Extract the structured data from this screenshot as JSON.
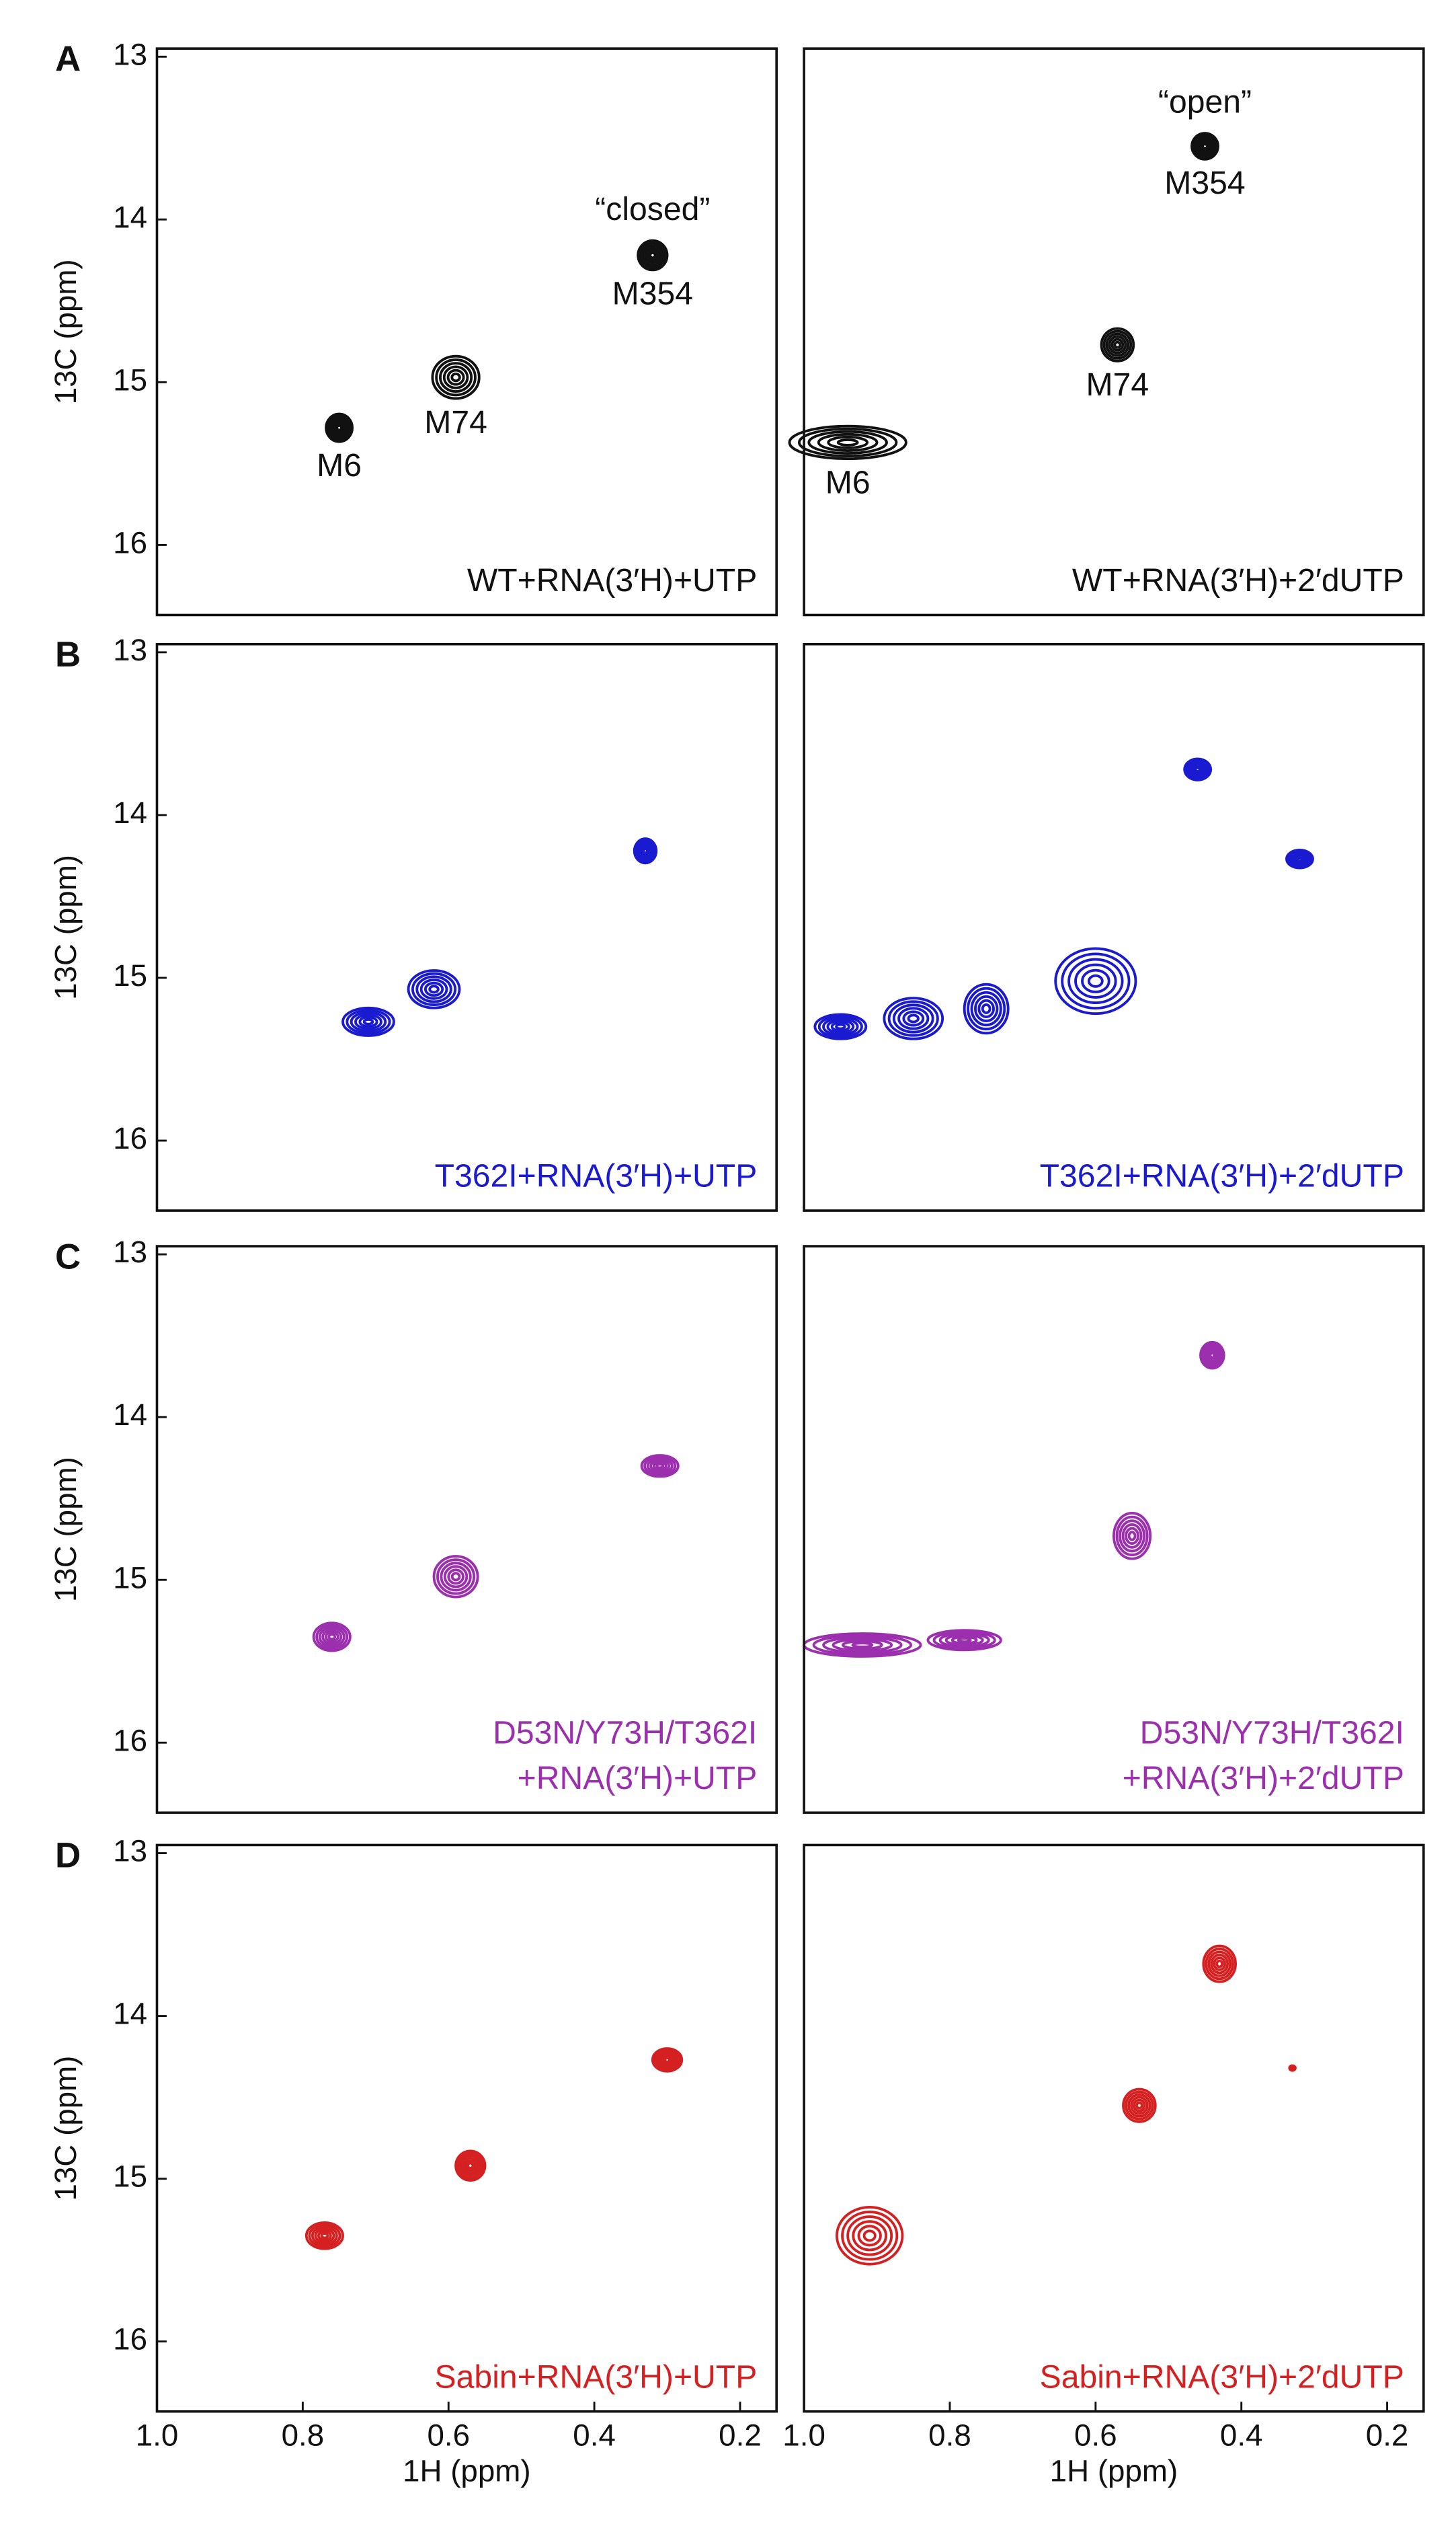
{
  "chart_data": [
    {
      "type": "contour",
      "letter": "A",
      "ylabel": "13C (ppm)",
      "color": "#111111",
      "xlim": [
        1.0,
        0.15
      ],
      "ylim": [
        12.95,
        16.43
      ],
      "yticks": [
        13,
        14,
        15,
        16
      ],
      "text": [
        "WT+RNA(3′H)+UTP"
      ],
      "annotations": [
        {
          "text": "“closed”",
          "peak": 2
        }
      ],
      "peaks": [
        {
          "x": 0.75,
          "y": 15.28,
          "w": 0.018,
          "h": 0.17,
          "label": "M6"
        },
        {
          "x": 0.59,
          "y": 14.97,
          "w": 0.032,
          "h": 0.26,
          "label": "M74"
        },
        {
          "x": 0.32,
          "y": 14.22,
          "w": 0.02,
          "h": 0.18,
          "label": "M354"
        }
      ]
    },
    {
      "type": "contour",
      "color": "#111111",
      "xlim": [
        1.0,
        0.15
      ],
      "ylim": [
        12.95,
        16.43
      ],
      "text": [
        "WT+RNA(3′H)+2′dUTP"
      ],
      "annotations": [
        {
          "text": "“open”",
          "peak": 0
        }
      ],
      "peaks": [
        {
          "x": 0.45,
          "y": 13.55,
          "w": 0.018,
          "h": 0.16,
          "label": "M354"
        },
        {
          "x": 0.57,
          "y": 14.77,
          "w": 0.022,
          "h": 0.2,
          "label": "M74"
        },
        {
          "x": 0.94,
          "y": 15.37,
          "w": 0.08,
          "h": 0.2,
          "label": "M6"
        }
      ]
    },
    {
      "type": "contour",
      "letter": "B",
      "ylabel": "13C (ppm)",
      "color": "#1a1ad0",
      "xlim": [
        1.0,
        0.15
      ],
      "ylim": [
        12.95,
        16.43
      ],
      "yticks": [
        13,
        14,
        15,
        16
      ],
      "text": [
        "T362I+RNA(3′H)+UTP"
      ],
      "peaks": [
        {
          "x": 0.33,
          "y": 14.22,
          "w": 0.015,
          "h": 0.15
        },
        {
          "x": 0.71,
          "y": 15.27,
          "w": 0.035,
          "h": 0.17
        },
        {
          "x": 0.62,
          "y": 15.07,
          "w": 0.035,
          "h": 0.23
        }
      ]
    },
    {
      "type": "contour",
      "color": "#1a1ad0",
      "xlim": [
        1.0,
        0.15
      ],
      "ylim": [
        12.95,
        16.43
      ],
      "text": [
        "T362I+RNA(3′H)+2′dUTP"
      ],
      "peaks": [
        {
          "x": 0.46,
          "y": 13.72,
          "w": 0.018,
          "h": 0.13
        },
        {
          "x": 0.32,
          "y": 14.27,
          "w": 0.018,
          "h": 0.11
        },
        {
          "x": 0.95,
          "y": 15.3,
          "w": 0.035,
          "h": 0.15
        },
        {
          "x": 0.85,
          "y": 15.25,
          "w": 0.04,
          "h": 0.25
        },
        {
          "x": 0.75,
          "y": 15.19,
          "w": 0.03,
          "h": 0.3
        },
        {
          "x": 0.6,
          "y": 15.02,
          "w": 0.055,
          "h": 0.4
        }
      ]
    },
    {
      "type": "contour",
      "letter": "C",
      "ylabel": "13C (ppm)",
      "color": "#9b2fae",
      "xlim": [
        1.0,
        0.15
      ],
      "ylim": [
        12.95,
        16.43
      ],
      "yticks": [
        13,
        14,
        15,
        16
      ],
      "text": [
        "D53N/Y73H/T362I",
        "+RNA(3′H)+UTP"
      ],
      "peaks": [
        {
          "x": 0.31,
          "y": 14.3,
          "w": 0.025,
          "h": 0.13
        },
        {
          "x": 0.59,
          "y": 14.98,
          "w": 0.03,
          "h": 0.25
        },
        {
          "x": 0.76,
          "y": 15.35,
          "w": 0.025,
          "h": 0.17
        }
      ]
    },
    {
      "type": "contour",
      "color": "#9b2fae",
      "xlim": [
        1.0,
        0.15
      ],
      "ylim": [
        12.95,
        16.43
      ],
      "text": [
        "D53N/Y73H/T362I",
        "+RNA(3′H)+2′dUTP"
      ],
      "peaks": [
        {
          "x": 0.44,
          "y": 13.62,
          "w": 0.016,
          "h": 0.16
        },
        {
          "x": 0.55,
          "y": 14.73,
          "w": 0.025,
          "h": 0.28
        },
        {
          "x": 0.92,
          "y": 15.4,
          "w": 0.08,
          "h": 0.14
        },
        {
          "x": 0.78,
          "y": 15.37,
          "w": 0.05,
          "h": 0.12
        }
      ]
    },
    {
      "type": "contour",
      "letter": "D",
      "ylabel": "13C (ppm)",
      "xlabel": "1H (ppm)",
      "color": "#d42020",
      "xlim": [
        1.0,
        0.15
      ],
      "ylim": [
        12.95,
        16.43
      ],
      "yticks": [
        13,
        14,
        15,
        16
      ],
      "xticks": [
        {
          "value": 1.0,
          "label": "1.0"
        },
        0.8,
        0.6,
        0.4,
        0.2
      ],
      "text": [
        "Sabin+RNA(3′H)+UTP"
      ],
      "peaks": [
        {
          "x": 0.3,
          "y": 14.27,
          "w": 0.02,
          "h": 0.14
        },
        {
          "x": 0.57,
          "y": 14.92,
          "w": 0.02,
          "h": 0.18
        },
        {
          "x": 0.77,
          "y": 15.35,
          "w": 0.025,
          "h": 0.16
        }
      ]
    },
    {
      "type": "contour",
      "color": "#d42020",
      "xlim": [
        1.0,
        0.15
      ],
      "ylim": [
        12.95,
        16.43
      ],
      "xlabel": "1H (ppm)",
      "xticks": [
        {
          "value": 1.0,
          "label": "1.0"
        },
        0.8,
        0.6,
        0.4,
        0.2
      ],
      "text": [
        "Sabin+RNA(3′H)+2′dUTP"
      ],
      "peaks": [
        {
          "x": 0.43,
          "y": 13.68,
          "w": 0.022,
          "h": 0.22
        },
        {
          "x": 0.54,
          "y": 14.55,
          "w": 0.022,
          "h": 0.2
        },
        {
          "x": 0.91,
          "y": 15.35,
          "w": 0.045,
          "h": 0.35
        },
        {
          "x": 0.33,
          "y": 14.32,
          "w": 0.004,
          "h": 0.03
        }
      ]
    }
  ]
}
